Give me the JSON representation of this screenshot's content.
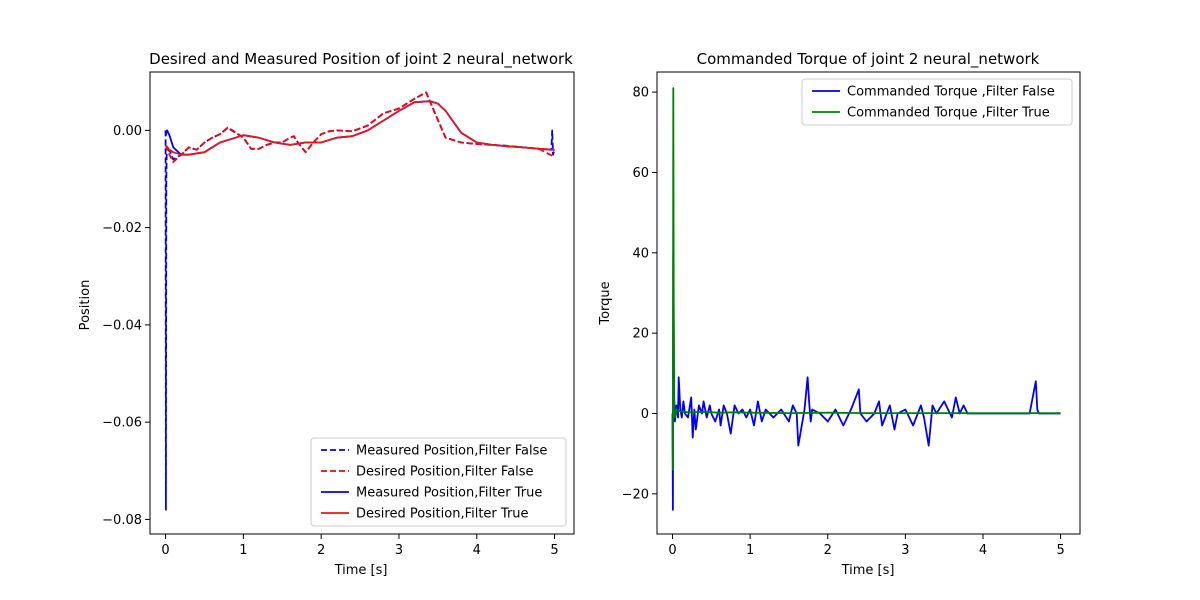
{
  "chart_data": [
    {
      "type": "line",
      "title": "Desired and Measured Position of joint 2 neural_network",
      "xlabel": "Time [s]",
      "ylabel": "Position",
      "xlim": [
        -0.2,
        5.25
      ],
      "ylim": [
        -0.083,
        0.012
      ],
      "xticks": [
        0,
        1,
        2,
        3,
        4,
        5
      ],
      "yticks": [
        0.0,
        -0.02,
        -0.04,
        -0.06,
        -0.08
      ],
      "ytick_labels": [
        "0.00",
        "−0.02",
        "−0.04",
        "−0.06",
        "−0.08"
      ],
      "legend_position": "lower-right",
      "grid": false,
      "series": [
        {
          "name": "Measured Position,Filter False",
          "color": "#0000ff",
          "style": "dashed",
          "x": [
            0,
            0.005,
            0.01,
            0.015,
            0.05,
            0.1,
            0.2,
            0.3,
            0.4,
            0.5,
            0.6,
            0.7,
            0.8,
            0.9,
            1.0,
            1.1,
            1.2,
            1.3,
            1.4,
            1.5,
            1.6,
            1.65,
            1.7,
            1.8,
            1.9,
            2.0,
            2.1,
            2.2,
            2.4,
            2.6,
            2.8,
            3.0,
            3.2,
            3.35,
            3.45,
            3.6,
            3.8,
            4.0,
            4.2,
            4.4,
            4.6,
            4.8,
            4.96,
            4.97,
            4.98,
            4.99,
            5.0
          ],
          "y": [
            0,
            -0.078,
            -0.01,
            -0.005,
            -0.004,
            -0.006,
            -0.005,
            -0.0035,
            -0.004,
            -0.0025,
            -0.0015,
            -0.0008,
            0.0005,
            -0.0005,
            -0.0015,
            -0.0038,
            -0.0038,
            -0.003,
            -0.0025,
            -0.0025,
            -0.0015,
            -0.0012,
            -0.0025,
            -0.0045,
            -0.0025,
            -0.0008,
            -0.0002,
            0.0,
            -0.0002,
            0.001,
            0.0035,
            0.0045,
            0.0065,
            0.0078,
            0.004,
            -0.0015,
            -0.0025,
            -0.0028,
            -0.003,
            -0.0032,
            -0.0035,
            -0.0038,
            -0.004,
            0.0,
            -0.005,
            -0.0045,
            -0.005
          ]
        },
        {
          "name": "Desired Position,Filter False",
          "color": "#ff0000",
          "style": "dashed",
          "x": [
            0,
            0.05,
            0.1,
            0.2,
            0.3,
            0.4,
            0.5,
            0.6,
            0.7,
            0.8,
            0.9,
            1.0,
            1.1,
            1.2,
            1.3,
            1.4,
            1.5,
            1.6,
            1.65,
            1.7,
            1.8,
            1.9,
            2.0,
            2.1,
            2.2,
            2.4,
            2.6,
            2.8,
            3.0,
            3.2,
            3.35,
            3.45,
            3.6,
            3.8,
            4.0,
            4.2,
            4.4,
            4.6,
            4.8,
            5.0
          ],
          "y": [
            -0.003,
            -0.005,
            -0.0065,
            -0.005,
            -0.0035,
            -0.004,
            -0.0025,
            -0.0015,
            -0.0008,
            0.0006,
            -0.0004,
            -0.0015,
            -0.0038,
            -0.0038,
            -0.003,
            -0.0025,
            -0.0025,
            -0.0015,
            -0.0012,
            -0.0025,
            -0.0045,
            -0.0025,
            -0.0008,
            -0.0002,
            0.0,
            -0.0002,
            0.001,
            0.0035,
            0.0045,
            0.0065,
            0.0078,
            0.004,
            -0.0015,
            -0.0025,
            -0.0028,
            -0.003,
            -0.0032,
            -0.0035,
            -0.0038,
            -0.0055
          ]
        },
        {
          "name": "Measured Position,Filter True",
          "color": "#0000ff",
          "style": "solid",
          "x": [
            0,
            0.005,
            0.01,
            0.02,
            0.05,
            0.1,
            0.2,
            0.3,
            0.5,
            0.7,
            0.9,
            1.0,
            1.2,
            1.4,
            1.6,
            1.8,
            2.0,
            2.2,
            2.4,
            2.6,
            2.8,
            3.0,
            3.2,
            3.4,
            3.5,
            3.6,
            3.8,
            4.0,
            4.2,
            4.4,
            4.6,
            4.8,
            5.0
          ],
          "y": [
            0,
            -0.001,
            -0.0005,
            0.0,
            -0.001,
            -0.0035,
            -0.005,
            -0.005,
            -0.0045,
            -0.0025,
            -0.0015,
            -0.001,
            -0.0015,
            -0.0025,
            -0.003,
            -0.0025,
            -0.0025,
            -0.0015,
            -0.0012,
            0.0,
            0.002,
            0.004,
            0.0058,
            0.006,
            0.0055,
            0.004,
            -0.0005,
            -0.0025,
            -0.003,
            -0.0033,
            -0.0035,
            -0.0038,
            -0.004
          ]
        },
        {
          "name": "Desired Position,Filter True",
          "color": "#e31a1c",
          "style": "solid",
          "x": [
            0,
            0.05,
            0.1,
            0.2,
            0.3,
            0.5,
            0.7,
            0.9,
            1.0,
            1.2,
            1.4,
            1.6,
            1.8,
            2.0,
            2.2,
            2.4,
            2.6,
            2.8,
            3.0,
            3.2,
            3.4,
            3.5,
            3.6,
            3.8,
            4.0,
            4.2,
            4.4,
            4.6,
            4.8,
            5.0
          ],
          "y": [
            -0.003,
            -0.004,
            -0.0045,
            -0.005,
            -0.005,
            -0.0045,
            -0.0025,
            -0.0015,
            -0.001,
            -0.0015,
            -0.0025,
            -0.003,
            -0.0025,
            -0.0025,
            -0.0015,
            -0.0012,
            0.0,
            0.002,
            0.004,
            0.0058,
            0.006,
            0.0055,
            0.004,
            -0.0005,
            -0.0025,
            -0.003,
            -0.0033,
            -0.0035,
            -0.0038,
            -0.004
          ]
        }
      ]
    },
    {
      "type": "line",
      "title": "Commanded Torque of joint 2 neural_network",
      "xlabel": "Time [s]",
      "ylabel": "Torque",
      "xlim": [
        -0.2,
        5.25
      ],
      "ylim": [
        -30,
        85
      ],
      "xticks": [
        0,
        1,
        2,
        3,
        4,
        5
      ],
      "yticks": [
        -20,
        0,
        20,
        40,
        60,
        80
      ],
      "ytick_labels": [
        "−20",
        "0",
        "20",
        "40",
        "60",
        "80"
      ],
      "legend_position": "upper-right",
      "grid": false,
      "series": [
        {
          "name": "Commanded Torque ,Filter False",
          "color": "#0000ff",
          "style": "solid",
          "x": [
            0,
            0.005,
            0.01,
            0.02,
            0.03,
            0.05,
            0.07,
            0.08,
            0.1,
            0.12,
            0.14,
            0.16,
            0.2,
            0.24,
            0.26,
            0.28,
            0.3,
            0.34,
            0.38,
            0.4,
            0.44,
            0.48,
            0.5,
            0.55,
            0.6,
            0.62,
            0.66,
            0.7,
            0.75,
            0.8,
            0.85,
            0.9,
            0.95,
            1.0,
            1.05,
            1.1,
            1.15,
            1.2,
            1.3,
            1.4,
            1.5,
            1.55,
            1.6,
            1.62,
            1.7,
            1.74,
            1.76,
            1.78,
            1.8,
            1.9,
            2.0,
            2.1,
            2.2,
            2.3,
            2.4,
            2.42,
            2.5,
            2.6,
            2.66,
            2.7,
            2.8,
            2.86,
            2.9,
            3.0,
            3.1,
            3.2,
            3.24,
            3.3,
            3.35,
            3.4,
            3.5,
            3.6,
            3.65,
            3.7,
            3.75,
            3.8,
            4.0,
            4.2,
            4.4,
            4.6,
            4.68,
            4.7,
            4.72,
            4.8,
            5.0
          ],
          "y": [
            0,
            -24,
            40,
            5,
            -2,
            2,
            -1,
            9,
            1,
            -1,
            3,
            0,
            -1,
            4,
            -6,
            1,
            -4,
            2,
            0,
            3,
            -1,
            2,
            0,
            -2,
            1,
            -3,
            2,
            0,
            -5,
            2,
            0,
            1,
            -1,
            1,
            -3,
            3,
            -2,
            1,
            -1,
            1,
            -2,
            2,
            0,
            -8,
            1,
            9,
            3,
            -2,
            1,
            0,
            -2,
            1,
            -3,
            1,
            6,
            0,
            -2,
            0,
            3,
            -3,
            2,
            -4,
            0,
            1,
            -3,
            2,
            -1,
            -8,
            2,
            0,
            3,
            -1,
            4,
            0,
            2,
            0,
            0,
            0,
            0,
            0,
            8,
            1,
            0,
            0,
            0
          ]
        },
        {
          "name": "Commanded Torque ,Filter True",
          "color": "#008000",
          "style": "solid",
          "x": [
            0,
            0.005,
            0.01,
            0.015,
            0.02,
            0.03,
            0.05,
            0.1,
            0.2,
            0.4,
            0.6,
            0.8,
            1.0,
            1.5,
            2.0,
            2.5,
            3.0,
            3.5,
            4.0,
            4.5,
            5.0
          ],
          "y": [
            0,
            -14,
            81,
            30,
            2,
            -1,
            1,
            0.5,
            0.3,
            0.4,
            0.2,
            0.3,
            0.2,
            0.1,
            0.2,
            0.1,
            0.1,
            0.1,
            0.1,
            0.1,
            0.1
          ]
        }
      ]
    }
  ]
}
